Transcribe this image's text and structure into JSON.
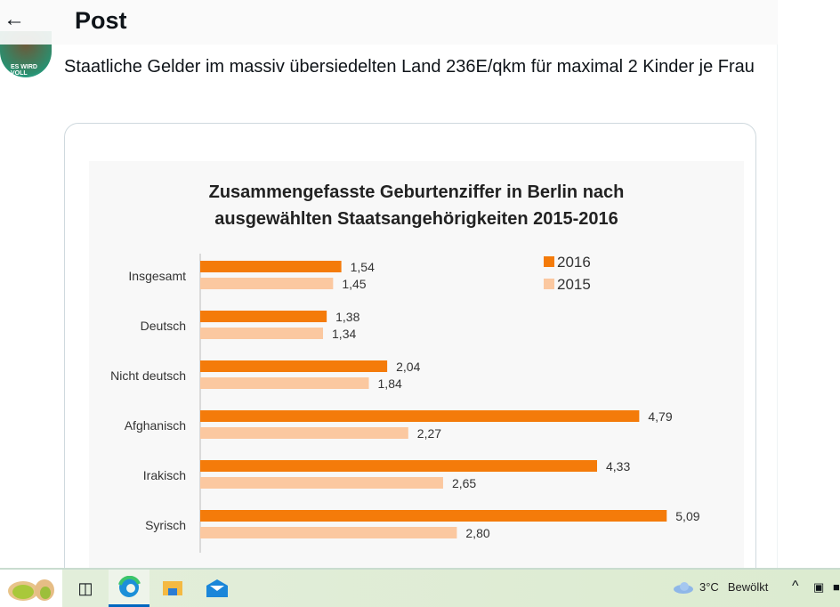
{
  "header": {
    "back_icon": "arrow-left-icon",
    "title": "Post"
  },
  "post": {
    "avatar_text": "ES WIRD VOLL",
    "text": "Staatliche Gelder im massiv übersiedelten Land  236E/qkm für maximal 2 Kinder je Frau"
  },
  "chart_data": {
    "type": "bar",
    "orientation": "horizontal",
    "title": "Zusammengefasste Geburtenziffer in Berlin nach ausgewählten Staatsangehörigkeiten 2015-2016",
    "title_lines": [
      "Zusammengefasste Geburtenziffer in Berlin nach",
      "ausgewählten Staatsangehörigkeiten 2015-2016"
    ],
    "categories": [
      "Insgesamt",
      "Deutsch",
      "Nicht deutsch",
      "Afghanisch",
      "Irakisch",
      "Syrisch"
    ],
    "series": [
      {
        "name": "2016",
        "color": "#f47b0a",
        "values": [
          1.54,
          1.38,
          2.04,
          4.79,
          4.33,
          5.09
        ],
        "labels": [
          "1,54",
          "1,38",
          "2,04",
          "4,79",
          "4,33",
          "5,09"
        ]
      },
      {
        "name": "2015",
        "color": "#fbc8a0",
        "values": [
          1.45,
          1.34,
          1.84,
          2.27,
          2.65,
          2.8
        ],
        "labels": [
          "1,45",
          "1,34",
          "1,84",
          "2,27",
          "2,65",
          "2,80"
        ]
      }
    ],
    "legend": "top-right",
    "grid": false,
    "xlim": [
      0,
      5.5
    ]
  },
  "taskbar": {
    "start_icon": "pistachio-icon",
    "apps": [
      "task-view-icon",
      "edge-icon",
      "file-explorer-icon",
      "mail-icon"
    ],
    "weather_icon": "cloud-icon",
    "temperature": "3°C",
    "weather": "Bewölkt",
    "tray_chevron": "^"
  }
}
